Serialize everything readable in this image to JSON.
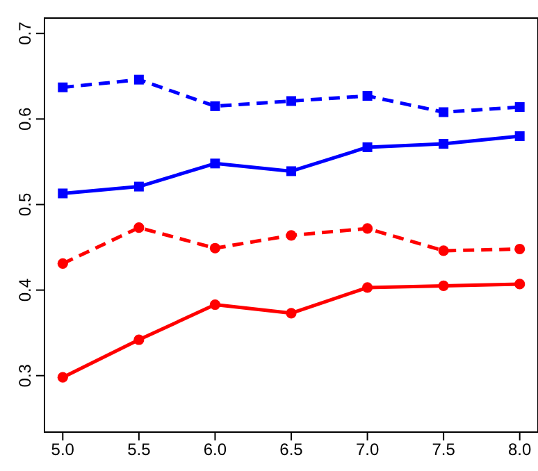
{
  "chart_data": {
    "type": "line",
    "x": [
      5.0,
      5.5,
      6.0,
      6.5,
      7.0,
      7.5,
      8.0
    ],
    "series": [
      {
        "color": "#0000ff",
        "marker": "square",
        "line_style": "dashed",
        "values": [
          0.637,
          0.646,
          0.615,
          0.621,
          0.627,
          0.608,
          0.614
        ]
      },
      {
        "color": "#0000ff",
        "marker": "square",
        "line_style": "solid",
        "values": [
          0.513,
          0.521,
          0.548,
          0.539,
          0.567,
          0.571,
          0.58
        ]
      },
      {
        "color": "#ff0000",
        "marker": "circle",
        "line_style": "dashed",
        "values": [
          0.431,
          0.473,
          0.449,
          0.464,
          0.472,
          0.446,
          0.448
        ]
      },
      {
        "color": "#ff0000",
        "marker": "circle",
        "line_style": "solid",
        "values": [
          0.298,
          0.342,
          0.383,
          0.373,
          0.403,
          0.405,
          0.407
        ]
      }
    ],
    "xlim": [
      4.88,
      8.12
    ],
    "ylim": [
      0.234,
      0.718
    ],
    "xticks": [
      {
        "value": 5,
        "label": "5.0"
      },
      {
        "value": 5.5,
        "label": "5.5"
      },
      {
        "value": 6,
        "label": "6.0"
      },
      {
        "value": 6.5,
        "label": "6.5"
      },
      {
        "value": 7,
        "label": "7.0"
      },
      {
        "value": 7.5,
        "label": "7.5"
      },
      {
        "value": 8,
        "label": "8.0"
      }
    ],
    "yticks": [
      0.3,
      0.4,
      0.5,
      0.6,
      0.7
    ],
    "grid": false,
    "legend": false
  }
}
